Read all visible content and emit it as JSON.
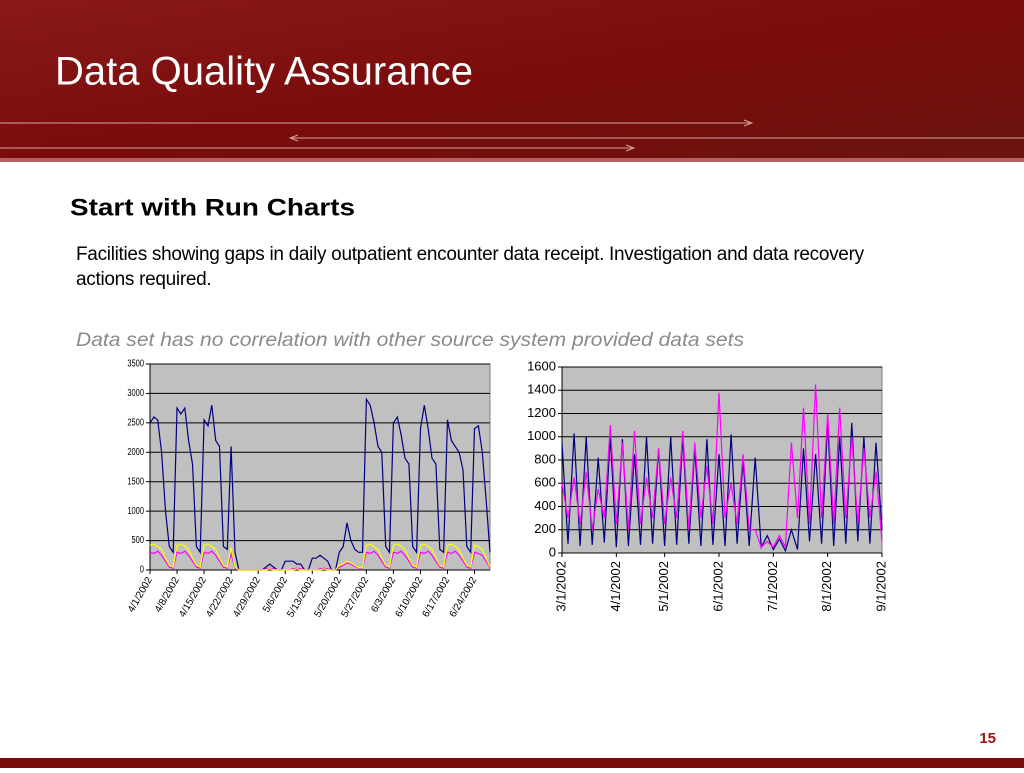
{
  "slide": {
    "title": "Data Quality Assurance",
    "heading": "Start with Run Charts",
    "body": "Facilities showing gaps in daily outpatient encounter data receipt. Investigation and data recovery actions required.",
    "note": "Data set has no correlation with other source system provided data sets",
    "page_number": "15"
  },
  "chart_data": [
    {
      "type": "line",
      "grid": true,
      "ylim": [
        0,
        3500
      ],
      "yticks": [
        0,
        500,
        1000,
        1500,
        2000,
        2500,
        3000,
        3500
      ],
      "categories": [
        "4/1/2002",
        null,
        null,
        null,
        null,
        null,
        null,
        "4/8/2002",
        null,
        null,
        null,
        null,
        null,
        null,
        "4/15/2002",
        null,
        null,
        null,
        null,
        null,
        null,
        "4/22/2002",
        null,
        null,
        null,
        null,
        null,
        null,
        "4/29/2002",
        null,
        null,
        null,
        null,
        null,
        null,
        "5/6/2002",
        null,
        null,
        null,
        null,
        null,
        null,
        "5/13/2002",
        null,
        null,
        null,
        null,
        null,
        null,
        "5/20/2002",
        null,
        null,
        null,
        null,
        null,
        null,
        "5/27/2002",
        null,
        null,
        null,
        null,
        null,
        null,
        "6/3/2002",
        null,
        null,
        null,
        null,
        null,
        null,
        "6/10/2002",
        null,
        null,
        null,
        null,
        null,
        null,
        "6/17/2002",
        null,
        null,
        null,
        null,
        null,
        null,
        "6/24/2002",
        null,
        null,
        null,
        null
      ],
      "series": [
        {
          "color": "#000080",
          "values": [
            2500,
            2600,
            2550,
            2000,
            1000,
            400,
            300,
            2750,
            2650,
            2750,
            2200,
            1800,
            400,
            300,
            2550,
            2450,
            2800,
            2200,
            2100,
            400,
            350,
            2100,
            300,
            0,
            0,
            0,
            0,
            0,
            0,
            0,
            50,
            100,
            50,
            0,
            0,
            150,
            150,
            150,
            100,
            100,
            0,
            0,
            200,
            200,
            250,
            200,
            150,
            0,
            0,
            300,
            400,
            800,
            500,
            350,
            300,
            300,
            2900,
            2800,
            2500,
            2100,
            2000,
            400,
            300,
            2500,
            2600,
            2300,
            1900,
            1800,
            400,
            300,
            2400,
            2800,
            2400,
            1900,
            1800,
            350,
            300,
            2550,
            2200,
            2100,
            2000,
            1700,
            400,
            300,
            2400,
            2450,
            2000,
            1200,
            300
          ]
        },
        {
          "color": "#ff00ff",
          "values": [
            300,
            280,
            320,
            250,
            150,
            50,
            30,
            300,
            280,
            320,
            250,
            150,
            50,
            30,
            300,
            280,
            320,
            250,
            150,
            50,
            30,
            280,
            30,
            0,
            0,
            0,
            0,
            0,
            0,
            0,
            20,
            30,
            20,
            0,
            0,
            0,
            0,
            20,
            30,
            20,
            0,
            0,
            0,
            0,
            20,
            30,
            20,
            0,
            0,
            50,
            80,
            120,
            100,
            60,
            30,
            30,
            300,
            280,
            320,
            250,
            150,
            50,
            30,
            300,
            280,
            320,
            250,
            150,
            50,
            30,
            300,
            280,
            320,
            250,
            150,
            50,
            30,
            300,
            280,
            320,
            250,
            150,
            50,
            30,
            300,
            280,
            250,
            150,
            30
          ]
        },
        {
          "color": "#ffff00",
          "values": [
            420,
            440,
            400,
            350,
            200,
            80,
            50,
            420,
            440,
            400,
            350,
            200,
            80,
            50,
            420,
            440,
            400,
            350,
            200,
            80,
            50,
            380,
            50,
            0,
            0,
            0,
            0,
            0,
            0,
            0,
            0,
            20,
            0,
            0,
            0,
            0,
            0,
            0,
            20,
            0,
            0,
            0,
            0,
            0,
            0,
            20,
            0,
            0,
            0,
            80,
            100,
            150,
            120,
            80,
            40,
            40,
            420,
            440,
            400,
            350,
            200,
            80,
            50,
            420,
            440,
            400,
            350,
            200,
            80,
            50,
            420,
            440,
            400,
            350,
            200,
            80,
            50,
            420,
            440,
            400,
            350,
            200,
            80,
            50,
            420,
            400,
            350,
            200,
            50
          ]
        }
      ]
    },
    {
      "type": "line",
      "grid": true,
      "ylim": [
        0,
        1600
      ],
      "yticks": [
        0,
        200,
        400,
        600,
        800,
        1000,
        1200,
        1400,
        1600
      ],
      "categories": [
        "3/1/2002",
        null,
        null,
        null,
        null,
        null,
        null,
        null,
        null,
        "4/1/2002",
        null,
        null,
        null,
        null,
        null,
        null,
        null,
        "5/1/2002",
        null,
        null,
        null,
        null,
        null,
        null,
        null,
        null,
        "6/1/2002",
        null,
        null,
        null,
        null,
        null,
        null,
        null,
        null,
        "7/1/2002",
        null,
        null,
        null,
        null,
        null,
        null,
        null,
        null,
        "8/1/2002",
        null,
        null,
        null,
        null,
        null,
        null,
        null,
        null,
        "9/1/2002"
      ],
      "series": [
        {
          "color": "#000080",
          "values": [
            950,
            80,
            1030,
            60,
            1000,
            70,
            820,
            90,
            1000,
            50,
            980,
            60,
            850,
            70,
            1000,
            80,
            900,
            60,
            1000,
            70,
            1000,
            80,
            900,
            60,
            980,
            70,
            850,
            60,
            1020,
            80,
            800,
            60,
            820,
            50,
            150,
            30,
            120,
            20,
            200,
            30,
            900,
            100,
            850,
            80,
            1120,
            60,
            1000,
            80,
            1120,
            100,
            1000,
            80,
            950,
            200
          ]
        },
        {
          "color": "#ff00ff",
          "values": [
            600,
            300,
            650,
            250,
            700,
            200,
            550,
            300,
            1100,
            250,
            950,
            200,
            1050,
            250,
            650,
            300,
            900,
            250,
            650,
            300,
            1050,
            200,
            950,
            300,
            750,
            250,
            1380,
            300,
            600,
            250,
            850,
            200,
            200,
            50,
            100,
            50,
            150,
            50,
            950,
            300,
            1250,
            250,
            1450,
            300,
            1200,
            250,
            1250,
            300,
            1000,
            250,
            900,
            300,
            700,
            100
          ]
        }
      ]
    }
  ]
}
